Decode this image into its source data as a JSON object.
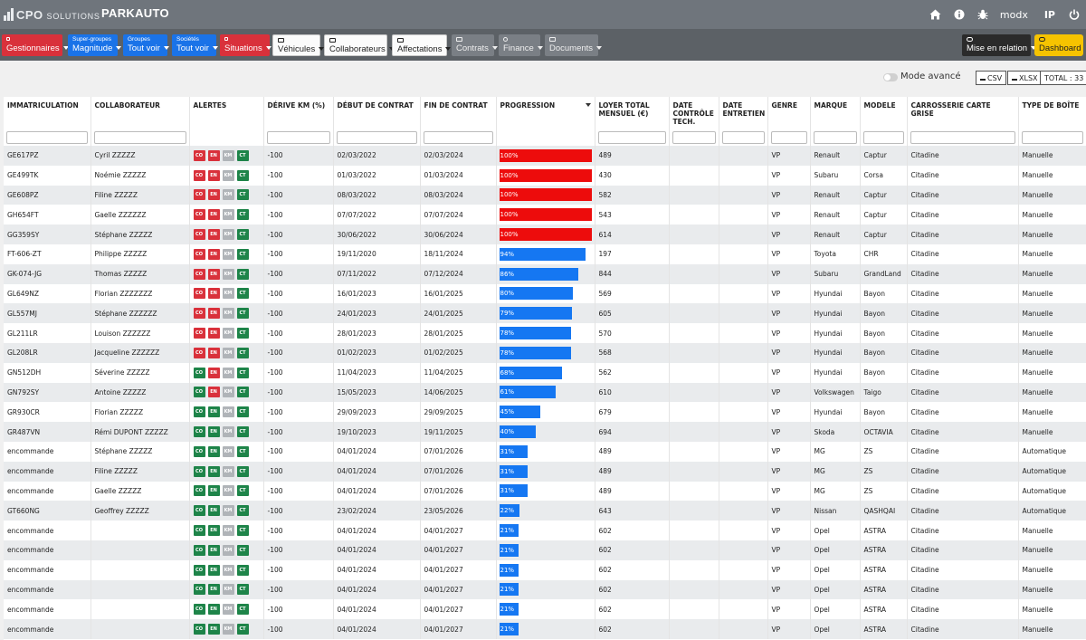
{
  "header": {
    "logo_bold": "CPO",
    "logo_light": "SOLUTIONS",
    "app_title": "PARKAUTO",
    "icons": [
      "home-icon",
      "info-icon",
      "bug-icon"
    ],
    "user": "modx",
    "ip_label": "IP",
    "power_icon": "power-icon"
  },
  "filters": [
    {
      "type": "red",
      "sub": "",
      "main": "Gestionnaires",
      "icon": "lock-icon"
    },
    {
      "type": "blue",
      "sub": "Super-groupes",
      "main": "Magnitude"
    },
    {
      "type": "blue",
      "sub": "Groupes",
      "main": "Tout voir"
    },
    {
      "type": "blue",
      "sub": "Sociétés",
      "main": "Tout voir"
    },
    {
      "type": "red",
      "sub": "",
      "main": "Situations",
      "icon": "lock-icon"
    },
    {
      "type": "white",
      "sub": "",
      "main": "Véhicules",
      "icon": "car-icon"
    },
    {
      "type": "white",
      "sub": "",
      "main": "Collaborateurs",
      "icon": "id-card-icon"
    },
    {
      "type": "white",
      "sub": "",
      "main": "Affectations",
      "icon": "car-icon"
    },
    {
      "type": "grey",
      "sub": "",
      "main": "Contrats",
      "icon": "card-icon"
    },
    {
      "type": "grey",
      "sub": "",
      "main": "Finance",
      "icon": "euro-icon"
    },
    {
      "type": "grey",
      "sub": "",
      "main": "Documents",
      "icon": "folder-icon"
    }
  ],
  "right_buttons": {
    "mise_en_relation": "Mise en relation",
    "dashboard": "Dashboard"
  },
  "subbar": {
    "toggle_label": "Mode avancé",
    "csv": "CSV",
    "xlsx": "XLSX",
    "total": "TOTAL : 33"
  },
  "columns": [
    "IMMATRICULATION",
    "COLLABORATEUR",
    "ALERTES",
    "DÉRIVE KM (%)",
    "DÉBUT DE CONTRAT",
    "FIN DE CONTRAT",
    "PROGRESSION",
    "LOYER TOTAL MENSUEL (€)",
    "DATE CONTRÔLE TECH.",
    "DATE ENTRETIEN",
    "GENRE",
    "MARQUE",
    "MODELE",
    "CARROSSERIE CARTE GRISE",
    "TYPE DE BOÎTE"
  ],
  "colors": {
    "alert_red": "#d9313b",
    "alert_green": "#1e8449",
    "alert_grey": "#b0b4b8",
    "progress_red": "#ed0c0c",
    "progress_blue": "#1577f2"
  },
  "rows": [
    {
      "immat": "GE617PZ",
      "collab": "Cyril ZZZZZ",
      "alerts": [
        "red",
        "red",
        "grey",
        "green"
      ],
      "derive": "-100",
      "debut": "02/03/2022",
      "fin": "02/03/2024",
      "prog": 100,
      "prog_label": "100%",
      "loyer": "489",
      "ct": "",
      "entretien": "",
      "genre": "VP",
      "marque": "Renault",
      "modele": "Captur",
      "carrosserie": "Citadine",
      "boite": "Manuelle"
    },
    {
      "immat": "GE499TK",
      "collab": "Noémie ZZZZZ",
      "alerts": [
        "red",
        "red",
        "grey",
        "green"
      ],
      "derive": "-100",
      "debut": "01/03/2022",
      "fin": "01/03/2024",
      "prog": 100,
      "prog_label": "100%",
      "loyer": "430",
      "ct": "",
      "entretien": "",
      "genre": "VP",
      "marque": "Subaru",
      "modele": "Corsa",
      "carrosserie": "Citadine",
      "boite": "Manuelle"
    },
    {
      "immat": "GE608PZ",
      "collab": "Filine ZZZZZ",
      "alerts": [
        "red",
        "red",
        "grey",
        "green"
      ],
      "derive": "-100",
      "debut": "08/03/2022",
      "fin": "08/03/2024",
      "prog": 100,
      "prog_label": "100%",
      "loyer": "582",
      "ct": "",
      "entretien": "",
      "genre": "VP",
      "marque": "Renault",
      "modele": "Captur",
      "carrosserie": "Citadine",
      "boite": "Manuelle"
    },
    {
      "immat": "GH654FT",
      "collab": "Gaelle ZZZZZZ",
      "alerts": [
        "red",
        "red",
        "grey",
        "green"
      ],
      "derive": "-100",
      "debut": "07/07/2022",
      "fin": "07/07/2024",
      "prog": 100,
      "prog_label": "100%",
      "loyer": "543",
      "ct": "",
      "entretien": "",
      "genre": "VP",
      "marque": "Renault",
      "modele": "Captur",
      "carrosserie": "Citadine",
      "boite": "Manuelle"
    },
    {
      "immat": "GG359SY",
      "collab": "Stéphane ZZZZZ",
      "alerts": [
        "red",
        "red",
        "grey",
        "green"
      ],
      "derive": "-100",
      "debut": "30/06/2022",
      "fin": "30/06/2024",
      "prog": 100,
      "prog_label": "100%",
      "loyer": "614",
      "ct": "",
      "entretien": "",
      "genre": "VP",
      "marque": "Renault",
      "modele": "Captur",
      "carrosserie": "Citadine",
      "boite": "Manuelle"
    },
    {
      "immat": "FT-606-ZT",
      "collab": "Philippe ZZZZZ",
      "alerts": [
        "red",
        "red",
        "grey",
        "green"
      ],
      "derive": "-100",
      "debut": "19/11/2020",
      "fin": "18/11/2024",
      "prog": 94,
      "prog_label": "94%",
      "loyer": "197",
      "ct": "",
      "entretien": "",
      "genre": "VP",
      "marque": "Toyota",
      "modele": "CHR",
      "carrosserie": "Citadine",
      "boite": "Manuelle"
    },
    {
      "immat": "GK-074-JG",
      "collab": "Thomas ZZZZZ",
      "alerts": [
        "red",
        "red",
        "grey",
        "green"
      ],
      "derive": "-100",
      "debut": "07/11/2022",
      "fin": "07/12/2024",
      "prog": 86,
      "prog_label": "86%",
      "loyer": "844",
      "ct": "",
      "entretien": "",
      "genre": "VP",
      "marque": "Subaru",
      "modele": "GrandLand",
      "carrosserie": "Citadine",
      "boite": "Manuelle"
    },
    {
      "immat": "GL649NZ",
      "collab": "Florian ZZZZZZZ",
      "alerts": [
        "red",
        "red",
        "grey",
        "green"
      ],
      "derive": "-100",
      "debut": "16/01/2023",
      "fin": "16/01/2025",
      "prog": 80,
      "prog_label": "80%",
      "loyer": "569",
      "ct": "",
      "entretien": "",
      "genre": "VP",
      "marque": "Hyundai",
      "modele": "Bayon",
      "carrosserie": "Citadine",
      "boite": "Manuelle"
    },
    {
      "immat": "GL557MJ",
      "collab": "Stéphane ZZZZZZ",
      "alerts": [
        "red",
        "red",
        "grey",
        "green"
      ],
      "derive": "-100",
      "debut": "24/01/2023",
      "fin": "24/01/2025",
      "prog": 79,
      "prog_label": "79%",
      "loyer": "605",
      "ct": "",
      "entretien": "",
      "genre": "VP",
      "marque": "Hyundai",
      "modele": "Bayon",
      "carrosserie": "Citadine",
      "boite": "Manuelle"
    },
    {
      "immat": "GL211LR",
      "collab": "Louison ZZZZZZ",
      "alerts": [
        "red",
        "red",
        "grey",
        "green"
      ],
      "derive": "-100",
      "debut": "28/01/2023",
      "fin": "28/01/2025",
      "prog": 78,
      "prog_label": "78%",
      "loyer": "570",
      "ct": "",
      "entretien": "",
      "genre": "VP",
      "marque": "Hyundai",
      "modele": "Bayon",
      "carrosserie": "Citadine",
      "boite": "Manuelle"
    },
    {
      "immat": "GL208LR",
      "collab": "Jacqueline ZZZZZZ",
      "alerts": [
        "red",
        "red",
        "grey",
        "green"
      ],
      "derive": "-100",
      "debut": "01/02/2023",
      "fin": "01/02/2025",
      "prog": 78,
      "prog_label": "78%",
      "loyer": "568",
      "ct": "",
      "entretien": "",
      "genre": "VP",
      "marque": "Hyundai",
      "modele": "Bayon",
      "carrosserie": "Citadine",
      "boite": "Manuelle"
    },
    {
      "immat": "GN512DH",
      "collab": "Séverine ZZZZZ",
      "alerts": [
        "green",
        "red",
        "grey",
        "green"
      ],
      "derive": "-100",
      "debut": "11/04/2023",
      "fin": "11/04/2025",
      "prog": 68,
      "prog_label": "68%",
      "loyer": "562",
      "ct": "",
      "entretien": "",
      "genre": "VP",
      "marque": "Hyundai",
      "modele": "Bayon",
      "carrosserie": "Citadine",
      "boite": "Manuelle"
    },
    {
      "immat": "GN792SY",
      "collab": "Antoine ZZZZZ",
      "alerts": [
        "green",
        "red",
        "grey",
        "green"
      ],
      "derive": "-100",
      "debut": "15/05/2023",
      "fin": "14/06/2025",
      "prog": 61,
      "prog_label": "61%",
      "loyer": "610",
      "ct": "",
      "entretien": "",
      "genre": "VP",
      "marque": "Volkswagen",
      "modele": "Taigo",
      "carrosserie": "Citadine",
      "boite": "Manuelle"
    },
    {
      "immat": "GR930CR",
      "collab": "Florian ZZZZZ",
      "alerts": [
        "green",
        "green",
        "grey",
        "green"
      ],
      "derive": "-100",
      "debut": "29/09/2023",
      "fin": "29/09/2025",
      "prog": 45,
      "prog_label": "45%",
      "loyer": "679",
      "ct": "",
      "entretien": "",
      "genre": "VP",
      "marque": "Hyundai",
      "modele": "Bayon",
      "carrosserie": "Citadine",
      "boite": "Manuelle"
    },
    {
      "immat": "GR487VN",
      "collab": "Rémi DUPONT ZZZZZ",
      "alerts": [
        "green",
        "green",
        "grey",
        "green"
      ],
      "derive": "-100",
      "debut": "19/10/2023",
      "fin": "19/11/2025",
      "prog": 40,
      "prog_label": "40%",
      "loyer": "694",
      "ct": "",
      "entretien": "",
      "genre": "VP",
      "marque": "Skoda",
      "modele": "OCTAVIA",
      "carrosserie": "Citadine",
      "boite": "Manuelle"
    },
    {
      "immat": "encommande",
      "collab": "Stéphane ZZZZZ",
      "alerts": [
        "green",
        "green",
        "grey",
        "green"
      ],
      "derive": "-100",
      "debut": "04/01/2024",
      "fin": "07/01/2026",
      "prog": 31,
      "prog_label": "31%",
      "loyer": "489",
      "ct": "",
      "entretien": "",
      "genre": "VP",
      "marque": "MG",
      "modele": "ZS",
      "carrosserie": "Citadine",
      "boite": "Automatique"
    },
    {
      "immat": "encommande",
      "collab": "Filine ZZZZZ",
      "alerts": [
        "green",
        "green",
        "grey",
        "green"
      ],
      "derive": "-100",
      "debut": "04/01/2024",
      "fin": "07/01/2026",
      "prog": 31,
      "prog_label": "31%",
      "loyer": "489",
      "ct": "",
      "entretien": "",
      "genre": "VP",
      "marque": "MG",
      "modele": "ZS",
      "carrosserie": "Citadine",
      "boite": "Automatique"
    },
    {
      "immat": "encommande",
      "collab": "Gaelle ZZZZZ",
      "alerts": [
        "green",
        "green",
        "grey",
        "green"
      ],
      "derive": "-100",
      "debut": "04/01/2024",
      "fin": "07/01/2026",
      "prog": 31,
      "prog_label": "31%",
      "loyer": "489",
      "ct": "",
      "entretien": "",
      "genre": "VP",
      "marque": "MG",
      "modele": "ZS",
      "carrosserie": "Citadine",
      "boite": "Automatique"
    },
    {
      "immat": "GT660NG",
      "collab": "Geoffrey ZZZZZ",
      "alerts": [
        "green",
        "green",
        "grey",
        "green"
      ],
      "derive": "-100",
      "debut": "23/02/2024",
      "fin": "23/05/2026",
      "prog": 22,
      "prog_label": "22%",
      "loyer": "643",
      "ct": "",
      "entretien": "",
      "genre": "VP",
      "marque": "Nissan",
      "modele": "QASHQAI",
      "carrosserie": "Citadine",
      "boite": "Automatique"
    },
    {
      "immat": "encommande",
      "collab": "",
      "alerts": [
        "green",
        "green",
        "grey",
        "green"
      ],
      "derive": "-100",
      "debut": "04/01/2024",
      "fin": "04/01/2027",
      "prog": 21,
      "prog_label": "21%",
      "loyer": "602",
      "ct": "",
      "entretien": "",
      "genre": "VP",
      "marque": "Opel",
      "modele": "ASTRA",
      "carrosserie": "Citadine",
      "boite": "Manuelle"
    },
    {
      "immat": "encommande",
      "collab": "",
      "alerts": [
        "green",
        "green",
        "grey",
        "green"
      ],
      "derive": "-100",
      "debut": "04/01/2024",
      "fin": "04/01/2027",
      "prog": 21,
      "prog_label": "21%",
      "loyer": "602",
      "ct": "",
      "entretien": "",
      "genre": "VP",
      "marque": "Opel",
      "modele": "ASTRA",
      "carrosserie": "Citadine",
      "boite": "Manuelle"
    },
    {
      "immat": "encommande",
      "collab": "",
      "alerts": [
        "green",
        "green",
        "grey",
        "green"
      ],
      "derive": "-100",
      "debut": "04/01/2024",
      "fin": "04/01/2027",
      "prog": 21,
      "prog_label": "21%",
      "loyer": "602",
      "ct": "",
      "entretien": "",
      "genre": "VP",
      "marque": "Opel",
      "modele": "ASTRA",
      "carrosserie": "Citadine",
      "boite": "Manuelle"
    },
    {
      "immat": "encommande",
      "collab": "",
      "alerts": [
        "green",
        "green",
        "grey",
        "green"
      ],
      "derive": "-100",
      "debut": "04/01/2024",
      "fin": "04/01/2027",
      "prog": 21,
      "prog_label": "21%",
      "loyer": "602",
      "ct": "",
      "entretien": "",
      "genre": "VP",
      "marque": "Opel",
      "modele": "ASTRA",
      "carrosserie": "Citadine",
      "boite": "Manuelle"
    },
    {
      "immat": "encommande",
      "collab": "",
      "alerts": [
        "green",
        "green",
        "grey",
        "green"
      ],
      "derive": "-100",
      "debut": "04/01/2024",
      "fin": "04/01/2027",
      "prog": 21,
      "prog_label": "21%",
      "loyer": "602",
      "ct": "",
      "entretien": "",
      "genre": "VP",
      "marque": "Opel",
      "modele": "ASTRA",
      "carrosserie": "Citadine",
      "boite": "Manuelle"
    },
    {
      "immat": "encommande",
      "collab": "",
      "alerts": [
        "green",
        "green",
        "grey",
        "green"
      ],
      "derive": "-100",
      "debut": "04/01/2024",
      "fin": "04/01/2027",
      "prog": 21,
      "prog_label": "21%",
      "loyer": "602",
      "ct": "",
      "entretien": "",
      "genre": "VP",
      "marque": "Opel",
      "modele": "ASTRA",
      "carrosserie": "Citadine",
      "boite": "Manuelle"
    }
  ],
  "alert_labels": [
    "CO",
    "EN",
    "KM",
    "CT"
  ]
}
